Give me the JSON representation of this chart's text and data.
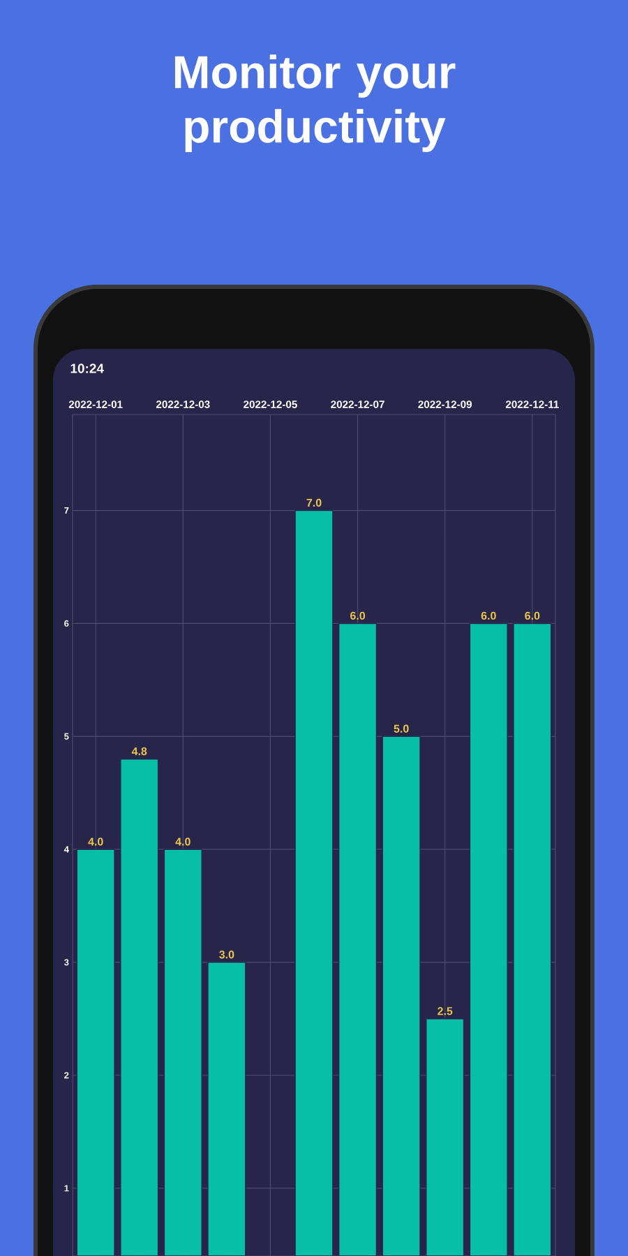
{
  "chart_data": {
    "type": "bar",
    "title": "Monitor your productivity",
    "annotations": [
      "10:24"
    ],
    "categories": [
      "2022-12-01",
      null,
      "2022-12-03",
      null,
      "2022-12-05",
      null,
      "2022-12-07",
      null,
      "2022-12-09",
      null,
      "2022-12-11"
    ],
    "values": [
      4.0,
      4.8,
      4.0,
      3.0,
      null,
      7.0,
      6.0,
      5.0,
      2.5,
      6.0,
      6.0
    ],
    "value_labels": [
      "4.0",
      "4.8",
      "4.0",
      "3.0",
      null,
      "7.0",
      "6.0",
      "5.0",
      "2.5",
      "6.0",
      "6.0"
    ],
    "color": "#06bfa6",
    "ylim": [
      0.4,
      7.85
    ],
    "yticks": [
      1,
      2,
      3,
      4,
      5,
      6,
      7
    ],
    "grid": true
  }
}
